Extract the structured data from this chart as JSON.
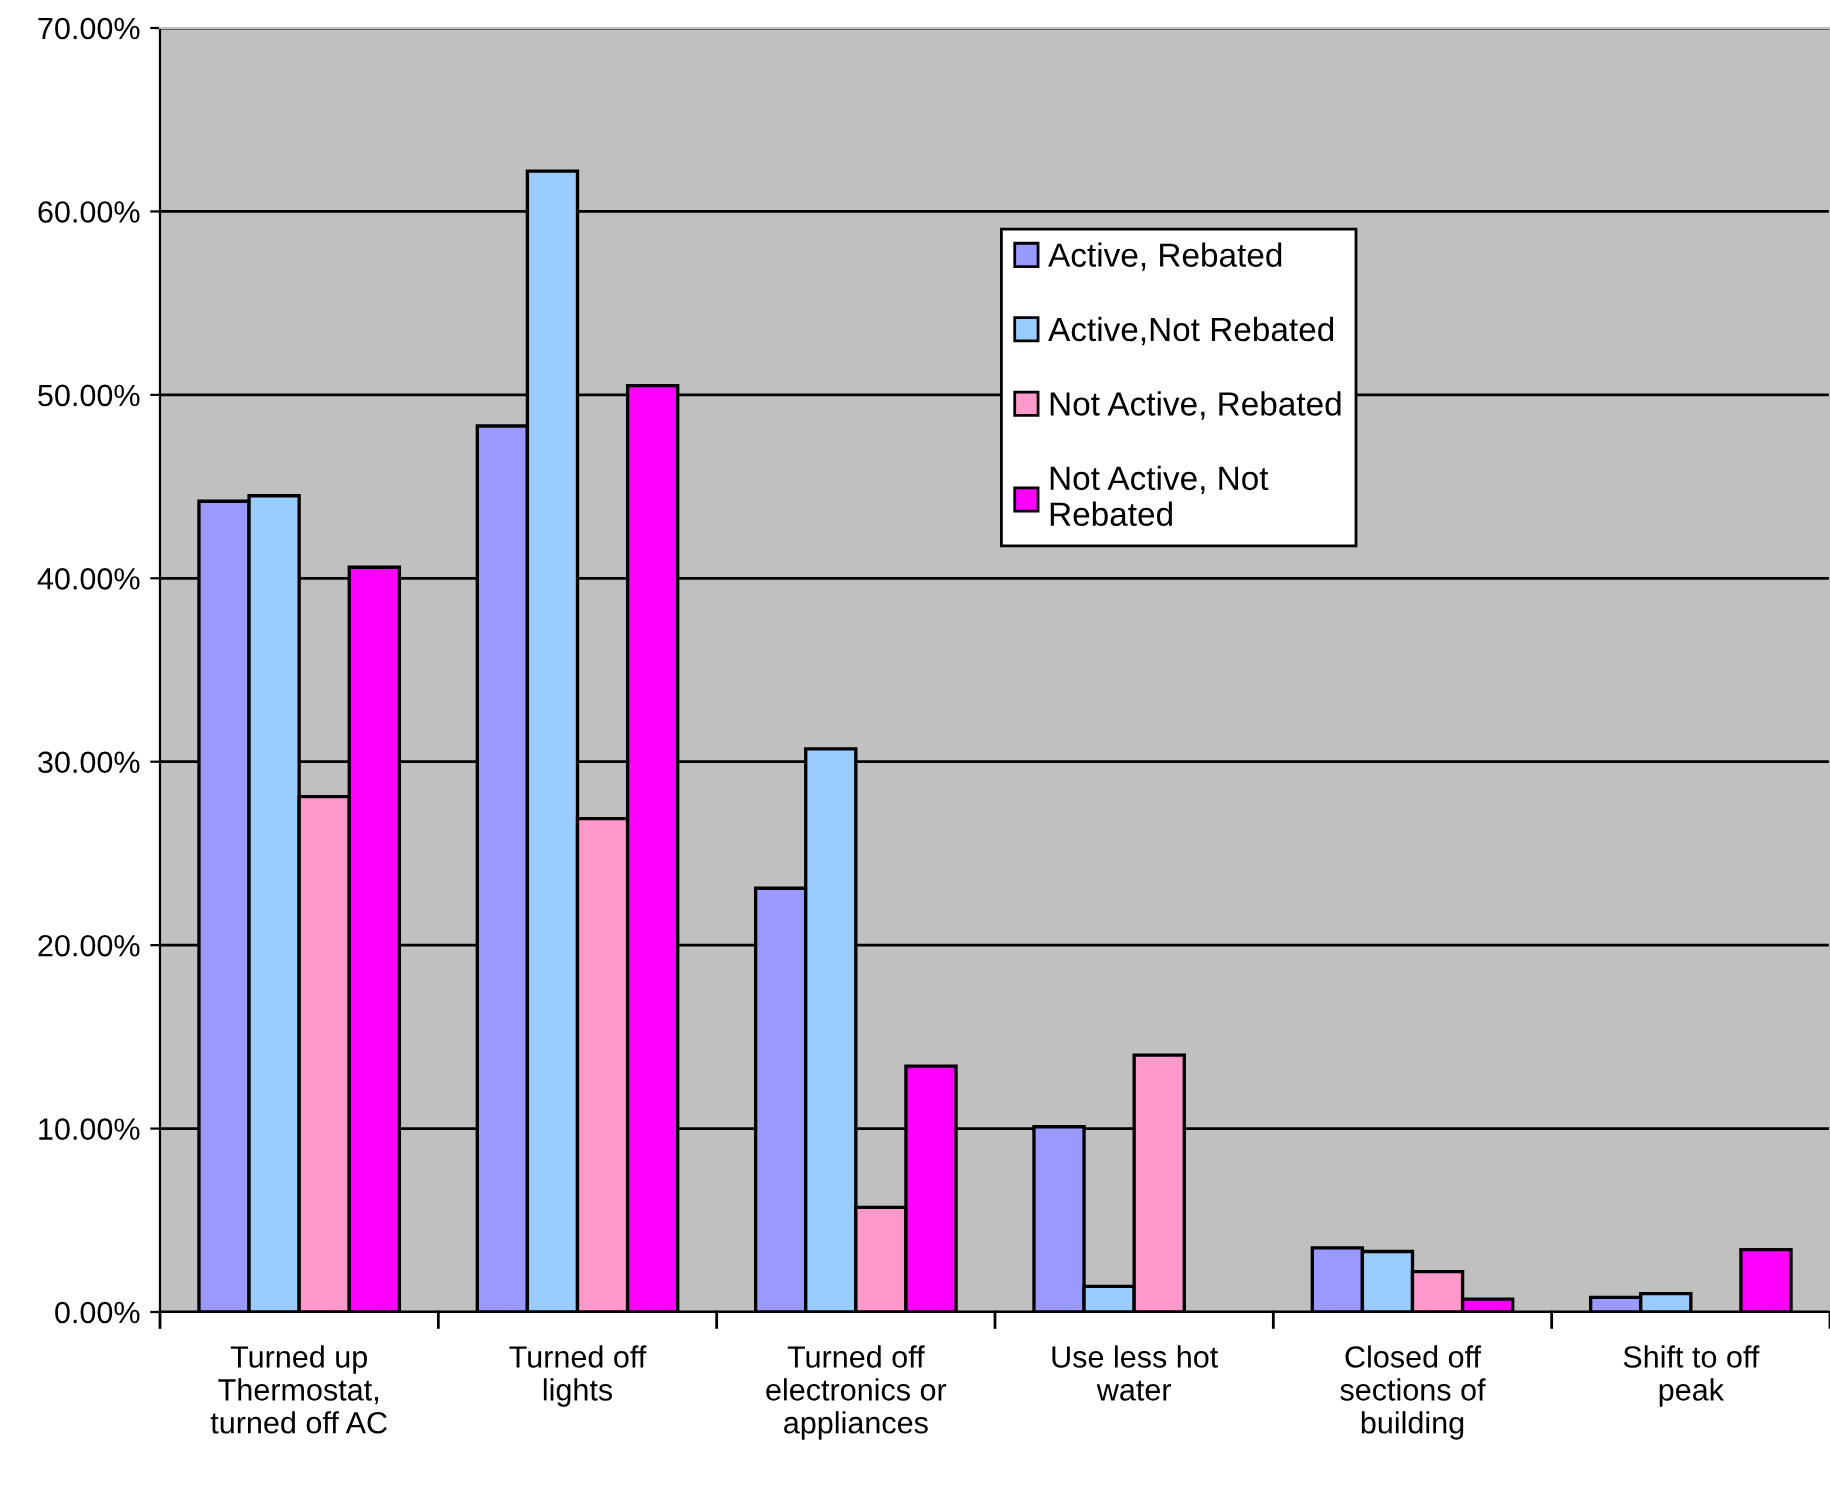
{
  "chart_data": {
    "type": "bar",
    "categories": [
      "Turned up\nThermostat,\nturned off AC",
      "Turned off\nlights",
      "Turned off\nelectronics or\nappliances",
      "Use less hot\nwater",
      "Closed off\nsections of\nbuilding",
      "Shift to off\npeak"
    ],
    "series": [
      {
        "name": "Active, Rebated",
        "color": "#9999ff",
        "values": [
          44.2,
          48.3,
          23.1,
          10.1,
          3.5,
          0.8
        ]
      },
      {
        "name": "Active,Not Rebated",
        "color": "#99ccff",
        "values": [
          44.5,
          62.2,
          30.7,
          1.4,
          3.3,
          1.0
        ]
      },
      {
        "name": "Not Active, Rebated",
        "color": "#ff99cc",
        "values": [
          28.1,
          26.9,
          5.7,
          14.0,
          2.2,
          null
        ]
      },
      {
        "name": "Not Active, Not\nRebated",
        "color": "#ff00ff",
        "values": [
          40.6,
          50.5,
          13.4,
          null,
          0.7,
          3.4
        ]
      }
    ],
    "ylim": [
      0,
      70
    ],
    "yticks": [
      {
        "value": 0,
        "label": "0.00%"
      },
      {
        "value": 10,
        "label": "10.00%"
      },
      {
        "value": 20,
        "label": "20.00%"
      },
      {
        "value": 30,
        "label": "30.00%"
      },
      {
        "value": 40,
        "label": "40.00%"
      },
      {
        "value": 50,
        "label": "50.00%"
      },
      {
        "value": 60,
        "label": "60.00%"
      },
      {
        "value": 70,
        "label": "70.00%"
      }
    ],
    "grid": "y",
    "legend": "top right"
  }
}
